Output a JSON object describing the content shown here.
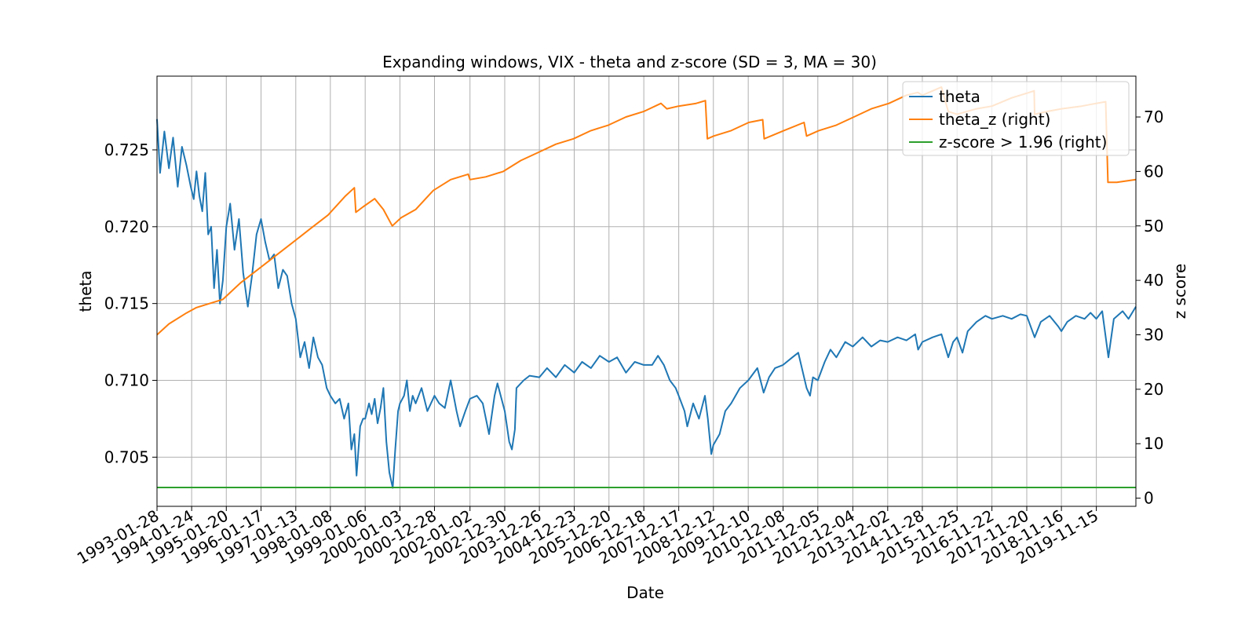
{
  "chart_data": {
    "type": "line",
    "title": "Expanding windows, VIX - theta and z-score (SD = 3, MA = 30)",
    "xlabel": "Date",
    "ylabel": "theta",
    "ylabel_right": "z score",
    "xlim": [
      "1993-01-28",
      "2020-12-31"
    ],
    "ylim": [
      0.7018,
      0.7298
    ],
    "ylim_right": [
      -1.5,
      77.5
    ],
    "grid": true,
    "legend_position": "top-right",
    "x_ticks": [
      "1993-01-28",
      "1994-01-24",
      "1995-01-20",
      "1996-01-17",
      "1997-01-13",
      "1998-01-08",
      "1999-01-06",
      "2000-01-03",
      "2000-12-28",
      "2002-01-02",
      "2002-12-30",
      "2003-12-26",
      "2004-12-23",
      "2005-12-20",
      "2006-12-18",
      "2007-12-17",
      "2008-12-12",
      "2009-12-10",
      "2010-12-08",
      "2011-12-05",
      "2012-12-04",
      "2013-12-02",
      "2014-11-28",
      "2015-11-25",
      "2016-11-22",
      "2017-11-20",
      "2018-11-16",
      "2019-11-15"
    ],
    "y_ticks": [
      "0.705",
      "0.710",
      "0.715",
      "0.720",
      "0.725"
    ],
    "y_ticks_right": [
      "0",
      "10",
      "20",
      "30",
      "40",
      "50",
      "60",
      "70"
    ],
    "series": [
      {
        "name": "theta",
        "axis": "left",
        "color": "#1f77b4",
        "points": [
          [
            "1993-01-28",
            0.727
          ],
          [
            "1993-03-01",
            0.7235
          ],
          [
            "1993-04-15",
            0.7262
          ],
          [
            "1993-06-01",
            0.7238
          ],
          [
            "1993-07-15",
            0.7258
          ],
          [
            "1993-09-01",
            0.7226
          ],
          [
            "1993-10-15",
            0.7252
          ],
          [
            "1993-12-01",
            0.724
          ],
          [
            "1994-01-15",
            0.7226
          ],
          [
            "1994-02-15",
            0.7218
          ],
          [
            "1994-03-15",
            0.7236
          ],
          [
            "1994-04-15",
            0.722
          ],
          [
            "1994-05-15",
            0.721
          ],
          [
            "1994-06-15",
            0.7235
          ],
          [
            "1994-07-15",
            0.7195
          ],
          [
            "1994-08-15",
            0.72
          ],
          [
            "1994-09-15",
            0.716
          ],
          [
            "1994-10-15",
            0.7185
          ],
          [
            "1994-11-15",
            0.715
          ],
          [
            "1994-12-15",
            0.7165
          ],
          [
            "1995-01-20",
            0.72
          ],
          [
            "1995-03-01",
            0.7215
          ],
          [
            "1995-04-15",
            0.7185
          ],
          [
            "1995-06-01",
            0.7205
          ],
          [
            "1995-07-15",
            0.717
          ],
          [
            "1995-09-01",
            0.7148
          ],
          [
            "1995-10-15",
            0.7168
          ],
          [
            "1995-12-01",
            0.7195
          ],
          [
            "1996-01-17",
            0.7205
          ],
          [
            "1996-03-01",
            0.719
          ],
          [
            "1996-04-15",
            0.7178
          ],
          [
            "1996-06-01",
            0.7182
          ],
          [
            "1996-07-15",
            0.716
          ],
          [
            "1996-09-01",
            0.7172
          ],
          [
            "1996-10-15",
            0.7168
          ],
          [
            "1996-12-01",
            0.715
          ],
          [
            "1997-01-13",
            0.714
          ],
          [
            "1997-03-01",
            0.7115
          ],
          [
            "1997-04-15",
            0.7125
          ],
          [
            "1997-06-01",
            0.7108
          ],
          [
            "1997-07-15",
            0.7128
          ],
          [
            "1997-09-01",
            0.7115
          ],
          [
            "1997-10-15",
            0.711
          ],
          [
            "1997-12-01",
            0.7095
          ],
          [
            "1998-01-08",
            0.709
          ],
          [
            "1998-03-01",
            0.7085
          ],
          [
            "1998-04-15",
            0.7088
          ],
          [
            "1998-06-01",
            0.7075
          ],
          [
            "1998-07-15",
            0.7085
          ],
          [
            "1998-08-15",
            0.7055
          ],
          [
            "1998-09-15",
            0.7065
          ],
          [
            "1998-10-08",
            0.7038
          ],
          [
            "1998-11-15",
            0.707
          ],
          [
            "1998-12-15",
            0.7075
          ],
          [
            "1999-01-06",
            0.7075
          ],
          [
            "1999-02-15",
            0.7085
          ],
          [
            "1999-03-15",
            0.7078
          ],
          [
            "1999-04-15",
            0.7088
          ],
          [
            "1999-05-15",
            0.7072
          ],
          [
            "1999-06-15",
            0.7082
          ],
          [
            "1999-07-15",
            0.7095
          ],
          [
            "1999-08-15",
            0.706
          ],
          [
            "1999-09-15",
            0.704
          ],
          [
            "1999-10-20",
            0.703
          ],
          [
            "1999-11-15",
            0.7055
          ],
          [
            "1999-12-15",
            0.708
          ],
          [
            "2000-01-03",
            0.7085
          ],
          [
            "2000-02-15",
            0.709
          ],
          [
            "2000-03-15",
            0.71
          ],
          [
            "2000-04-15",
            0.708
          ],
          [
            "2000-05-15",
            0.709
          ],
          [
            "2000-06-15",
            0.7085
          ],
          [
            "2000-08-15",
            0.7095
          ],
          [
            "2000-10-15",
            0.708
          ],
          [
            "2000-12-28",
            0.709
          ],
          [
            "2001-02-15",
            0.7085
          ],
          [
            "2001-04-15",
            0.7082
          ],
          [
            "2001-06-15",
            0.71
          ],
          [
            "2001-08-15",
            0.708
          ],
          [
            "2001-09-21",
            0.707
          ],
          [
            "2001-11-15",
            0.708
          ],
          [
            "2002-01-02",
            0.7088
          ],
          [
            "2002-03-15",
            0.709
          ],
          [
            "2002-05-15",
            0.7085
          ],
          [
            "2002-07-20",
            0.7065
          ],
          [
            "2002-09-15",
            0.709
          ],
          [
            "2002-10-15",
            0.7098
          ],
          [
            "2002-12-30",
            0.708
          ],
          [
            "2003-02-15",
            0.706
          ],
          [
            "2003-03-15",
            0.7055
          ],
          [
            "2003-04-15",
            0.7068
          ],
          [
            "2003-05-01",
            0.7095
          ],
          [
            "2003-07-15",
            0.71
          ],
          [
            "2003-09-15",
            0.7103
          ],
          [
            "2003-12-26",
            0.7102
          ],
          [
            "2004-03-15",
            0.7108
          ],
          [
            "2004-06-15",
            0.7102
          ],
          [
            "2004-09-15",
            0.711
          ],
          [
            "2004-12-23",
            0.7105
          ],
          [
            "2005-03-15",
            0.7112
          ],
          [
            "2005-06-15",
            0.7108
          ],
          [
            "2005-09-15",
            0.7116
          ],
          [
            "2005-12-20",
            0.7112
          ],
          [
            "2006-03-15",
            0.7115
          ],
          [
            "2006-06-15",
            0.7105
          ],
          [
            "2006-09-15",
            0.7112
          ],
          [
            "2006-12-18",
            0.711
          ],
          [
            "2007-03-15",
            0.711
          ],
          [
            "2007-05-15",
            0.7116
          ],
          [
            "2007-07-15",
            0.711
          ],
          [
            "2007-09-15",
            0.71
          ],
          [
            "2007-11-15",
            0.7095
          ],
          [
            "2007-12-17",
            0.709
          ],
          [
            "2008-02-15",
            0.708
          ],
          [
            "2008-03-15",
            0.707
          ],
          [
            "2008-05-15",
            0.7085
          ],
          [
            "2008-07-15",
            0.7075
          ],
          [
            "2008-09-15",
            0.709
          ],
          [
            "2008-10-15",
            0.7075
          ],
          [
            "2008-11-20",
            0.7052
          ],
          [
            "2008-12-12",
            0.7058
          ],
          [
            "2009-02-15",
            0.7065
          ],
          [
            "2009-04-15",
            0.708
          ],
          [
            "2009-06-15",
            0.7085
          ],
          [
            "2009-09-15",
            0.7095
          ],
          [
            "2009-12-10",
            0.71
          ],
          [
            "2010-03-15",
            0.7108
          ],
          [
            "2010-05-20",
            0.7092
          ],
          [
            "2010-07-15",
            0.7102
          ],
          [
            "2010-09-15",
            0.7108
          ],
          [
            "2010-12-08",
            0.711
          ],
          [
            "2011-03-15",
            0.7115
          ],
          [
            "2011-05-15",
            0.7118
          ],
          [
            "2011-08-10",
            0.7095
          ],
          [
            "2011-09-15",
            0.709
          ],
          [
            "2011-10-15",
            0.7102
          ],
          [
            "2011-12-05",
            0.71
          ],
          [
            "2012-02-15",
            0.7112
          ],
          [
            "2012-04-15",
            0.712
          ],
          [
            "2012-06-15",
            0.7115
          ],
          [
            "2012-09-15",
            0.7125
          ],
          [
            "2012-12-04",
            0.7122
          ],
          [
            "2013-03-15",
            0.7128
          ],
          [
            "2013-06-15",
            0.7122
          ],
          [
            "2013-09-15",
            0.7126
          ],
          [
            "2013-12-02",
            0.7125
          ],
          [
            "2014-03-15",
            0.7128
          ],
          [
            "2014-06-15",
            0.7126
          ],
          [
            "2014-09-15",
            0.713
          ],
          [
            "2014-10-15",
            0.712
          ],
          [
            "2014-11-28",
            0.7125
          ],
          [
            "2015-03-15",
            0.7128
          ],
          [
            "2015-06-15",
            0.713
          ],
          [
            "2015-08-25",
            0.7115
          ],
          [
            "2015-10-15",
            0.7125
          ],
          [
            "2015-11-25",
            0.7128
          ],
          [
            "2016-01-20",
            0.7118
          ],
          [
            "2016-03-15",
            0.7132
          ],
          [
            "2016-06-15",
            0.7138
          ],
          [
            "2016-09-15",
            0.7142
          ],
          [
            "2016-11-22",
            0.714
          ],
          [
            "2017-03-15",
            0.7142
          ],
          [
            "2017-06-15",
            0.714
          ],
          [
            "2017-09-15",
            0.7143
          ],
          [
            "2017-11-20",
            0.7142
          ],
          [
            "2018-02-10",
            0.7128
          ],
          [
            "2018-04-15",
            0.7138
          ],
          [
            "2018-07-15",
            0.7142
          ],
          [
            "2018-10-15",
            0.7135
          ],
          [
            "2018-11-16",
            0.7132
          ],
          [
            "2019-01-15",
            0.7138
          ],
          [
            "2019-04-15",
            0.7142
          ],
          [
            "2019-07-15",
            0.714
          ],
          [
            "2019-09-15",
            0.7144
          ],
          [
            "2019-11-15",
            0.714
          ],
          [
            "2020-01-15",
            0.7145
          ],
          [
            "2020-03-20",
            0.7115
          ],
          [
            "2020-05-15",
            0.714
          ],
          [
            "2020-08-15",
            0.7145
          ],
          [
            "2020-10-15",
            0.714
          ],
          [
            "2020-12-31",
            0.7148
          ]
        ]
      },
      {
        "name": "theta_z (right)",
        "axis": "right",
        "color": "#ff7f0e",
        "points": [
          [
            "1993-01-28",
            30.0
          ],
          [
            "1993-06-01",
            32.0
          ],
          [
            "1993-12-01",
            34.0
          ],
          [
            "1994-03-15",
            35.0
          ],
          [
            "1994-06-15",
            35.5
          ],
          [
            "1994-12-15",
            36.5
          ],
          [
            "1995-06-15",
            39.5
          ],
          [
            "1995-12-15",
            42.0
          ],
          [
            "1996-06-15",
            44.5
          ],
          [
            "1996-12-15",
            47.0
          ],
          [
            "1997-06-15",
            49.5
          ],
          [
            "1997-12-15",
            52.0
          ],
          [
            "1998-06-15",
            55.5
          ],
          [
            "1998-09-15",
            57.0
          ],
          [
            "1998-10-01",
            52.5
          ],
          [
            "1998-12-15",
            53.5
          ],
          [
            "1999-04-15",
            55.0
          ],
          [
            "1999-07-15",
            53.0
          ],
          [
            "1999-10-15",
            50.0
          ],
          [
            "2000-01-15",
            51.5
          ],
          [
            "2000-06-15",
            53.0
          ],
          [
            "2000-12-15",
            56.5
          ],
          [
            "2001-06-15",
            58.5
          ],
          [
            "2001-12-15",
            59.5
          ],
          [
            "2002-01-02",
            58.5
          ],
          [
            "2002-06-15",
            59.0
          ],
          [
            "2002-12-15",
            60.0
          ],
          [
            "2003-06-15",
            62.0
          ],
          [
            "2003-12-15",
            63.5
          ],
          [
            "2004-06-15",
            65.0
          ],
          [
            "2004-12-15",
            66.0
          ],
          [
            "2005-06-15",
            67.5
          ],
          [
            "2005-12-15",
            68.5
          ],
          [
            "2006-06-15",
            70.0
          ],
          [
            "2006-12-15",
            71.0
          ],
          [
            "2007-06-15",
            72.5
          ],
          [
            "2007-08-15",
            71.5
          ],
          [
            "2007-12-15",
            72.0
          ],
          [
            "2008-06-15",
            72.5
          ],
          [
            "2008-09-20",
            73.0
          ],
          [
            "2008-10-10",
            66.0
          ],
          [
            "2008-12-15",
            66.5
          ],
          [
            "2009-06-15",
            67.5
          ],
          [
            "2009-12-15",
            69.0
          ],
          [
            "2010-05-10",
            69.5
          ],
          [
            "2010-05-25",
            66.0
          ],
          [
            "2010-12-15",
            67.5
          ],
          [
            "2011-07-15",
            69.0
          ],
          [
            "2011-08-10",
            66.5
          ],
          [
            "2011-12-15",
            67.5
          ],
          [
            "2012-06-15",
            68.5
          ],
          [
            "2012-12-15",
            70.0
          ],
          [
            "2013-06-15",
            71.5
          ],
          [
            "2013-12-15",
            72.5
          ],
          [
            "2014-06-15",
            74.0
          ],
          [
            "2014-10-10",
            74.5
          ],
          [
            "2014-11-28",
            74.0
          ],
          [
            "2015-06-15",
            75.5
          ],
          [
            "2015-08-25",
            71.0
          ],
          [
            "2015-11-25",
            70.5
          ],
          [
            "2016-06-15",
            71.5
          ],
          [
            "2016-11-22",
            72.0
          ],
          [
            "2017-06-15",
            73.5
          ],
          [
            "2017-12-15",
            74.5
          ],
          [
            "2018-02-05",
            74.8
          ],
          [
            "2018-02-10",
            70.5
          ],
          [
            "2018-06-15",
            71.0
          ],
          [
            "2018-11-16",
            71.5
          ],
          [
            "2019-06-15",
            72.0
          ],
          [
            "2019-11-15",
            72.5
          ],
          [
            "2020-02-20",
            72.8
          ],
          [
            "2020-03-15",
            58.0
          ],
          [
            "2020-06-15",
            58.0
          ],
          [
            "2020-12-31",
            58.5
          ]
        ]
      },
      {
        "name": "z-score > 1.96 (right)",
        "axis": "right",
        "color": "#2ca02c",
        "points": [
          [
            "1993-01-28",
            1.96
          ],
          [
            "2020-12-31",
            1.96
          ]
        ]
      }
    ]
  }
}
